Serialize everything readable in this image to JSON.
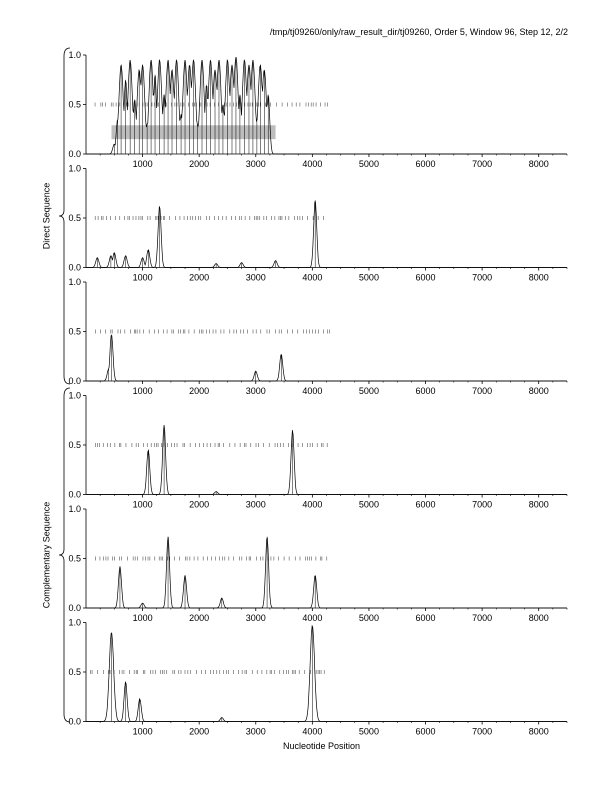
{
  "header": "/tmp/tj09260/only/raw_result_dir/tj09260, Order 5, Window 96, Step 12, 2/2",
  "xlabel": "Nucleotide Position",
  "groups": [
    "Direct Sequence",
    "Complementary Sequence"
  ],
  "chart_data": {
    "type": "line",
    "xlim": [
      0,
      8500
    ],
    "ylim": [
      0,
      1
    ],
    "xticks": [
      1000,
      2000,
      3000,
      4000,
      5000,
      6000,
      7000,
      8000
    ],
    "yticks": [
      "0.0",
      "0.5",
      "1.0"
    ],
    "panels": [
      {
        "group": "Direct Sequence",
        "coding_region": [
          450,
          3350
        ],
        "gene_marks_range": [
          60,
          4300
        ],
        "peaks": [
          [
            500,
            0.1
          ],
          [
            560,
            0.35
          ],
          [
            620,
            0.9
          ],
          [
            700,
            0.75
          ],
          [
            780,
            0.95
          ],
          [
            860,
            0.55
          ],
          [
            940,
            0.85
          ],
          [
            1000,
            0.9
          ],
          [
            1080,
            0.3
          ],
          [
            1150,
            0.95
          ],
          [
            1220,
            0.8
          ],
          [
            1300,
            0.95
          ],
          [
            1380,
            0.6
          ],
          [
            1450,
            0.95
          ],
          [
            1520,
            0.85
          ],
          [
            1600,
            0.95
          ],
          [
            1680,
            0.4
          ],
          [
            1750,
            0.95
          ],
          [
            1830,
            0.9
          ],
          [
            1900,
            0.95
          ],
          [
            1970,
            0.3
          ],
          [
            2050,
            0.95
          ],
          [
            2130,
            0.7
          ],
          [
            2200,
            0.95
          ],
          [
            2280,
            0.85
          ],
          [
            2350,
            0.95
          ],
          [
            2420,
            0.5
          ],
          [
            2500,
            0.95
          ],
          [
            2580,
            0.9
          ],
          [
            2650,
            0.98
          ],
          [
            2720,
            0.6
          ],
          [
            2800,
            0.95
          ],
          [
            2880,
            0.9
          ],
          [
            2950,
            0.95
          ],
          [
            3020,
            0.35
          ],
          [
            3080,
            0.9
          ],
          [
            3150,
            0.85
          ],
          [
            3220,
            0.6
          ]
        ]
      },
      {
        "group": "Direct Sequence",
        "gene_marks_range": [
          60,
          4300
        ],
        "peaks": [
          [
            200,
            0.1
          ],
          [
            440,
            0.12
          ],
          [
            500,
            0.15
          ],
          [
            700,
            0.12
          ],
          [
            1000,
            0.1
          ],
          [
            1100,
            0.18
          ],
          [
            1300,
            0.62
          ],
          [
            2300,
            0.04
          ],
          [
            2750,
            0.05
          ],
          [
            3350,
            0.07
          ],
          [
            4050,
            0.68
          ]
        ]
      },
      {
        "group": "Direct Sequence",
        "gene_marks_range": [
          60,
          4300
        ],
        "peaks": [
          [
            400,
            0.12
          ],
          [
            450,
            0.47
          ],
          [
            3000,
            0.1
          ],
          [
            3450,
            0.27
          ]
        ]
      },
      {
        "group": "Complementary Sequence",
        "gene_marks_range": [
          60,
          4300
        ],
        "peaks": [
          [
            1100,
            0.45
          ],
          [
            1380,
            0.7
          ],
          [
            2300,
            0.03
          ],
          [
            3650,
            0.65
          ]
        ]
      },
      {
        "group": "Complementary Sequence",
        "gene_marks_range": [
          60,
          4300
        ],
        "peaks": [
          [
            600,
            0.42
          ],
          [
            1000,
            0.05
          ],
          [
            1450,
            0.72
          ],
          [
            1750,
            0.33
          ],
          [
            2400,
            0.1
          ],
          [
            3200,
            0.72
          ],
          [
            4050,
            0.33
          ]
        ]
      },
      {
        "group": "Complementary Sequence",
        "gene_marks_range": [
          60,
          4300
        ],
        "peaks": [
          [
            450,
            0.9
          ],
          [
            700,
            0.4
          ],
          [
            950,
            0.23
          ],
          [
            2400,
            0.04
          ],
          [
            4000,
            0.97
          ]
        ]
      }
    ]
  }
}
